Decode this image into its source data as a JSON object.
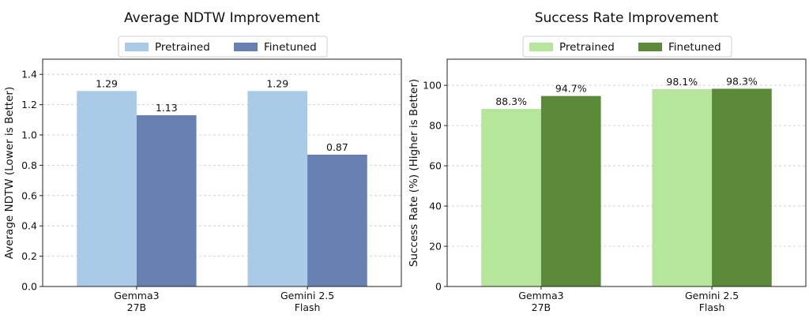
{
  "chart_data": [
    {
      "type": "bar",
      "title": "Average NDTW Improvement",
      "xlabel": "",
      "ylabel": "Average NDTW (Lower is Better)",
      "categories": [
        [
          "Gemma3",
          "27B"
        ],
        [
          "Gemini 2.5",
          "Flash"
        ]
      ],
      "series": [
        {
          "name": "Pretrained",
          "values": [
            1.29,
            1.29
          ],
          "color": "#a9cbe8"
        },
        {
          "name": "Finetuned",
          "values": [
            1.13,
            0.87
          ],
          "color": "#6780b2"
        }
      ],
      "data_labels": [
        [
          "1.29",
          "1.29"
        ],
        [
          "1.13",
          "0.87"
        ]
      ],
      "ylim": [
        0,
        1.5
      ],
      "yticks": [
        0.0,
        0.2,
        0.4,
        0.6,
        0.8,
        1.0,
        1.2,
        1.4
      ],
      "ytick_labels": [
        "0.0",
        "0.2",
        "0.4",
        "0.6",
        "0.8",
        "1.0",
        "1.2",
        "1.4"
      ],
      "grid": true,
      "legend_position": "top-center"
    },
    {
      "type": "bar",
      "title": "Success Rate Improvement",
      "xlabel": "",
      "ylabel": "Success Rate (%) (Higher is Better)",
      "categories": [
        [
          "Gemma3",
          "27B"
        ],
        [
          "Gemini 2.5",
          "Flash"
        ]
      ],
      "series": [
        {
          "name": "Pretrained",
          "values": [
            88.3,
            98.1
          ],
          "color": "#b5e69b"
        },
        {
          "name": "Finetuned",
          "values": [
            94.7,
            98.3
          ],
          "color": "#5a8a37"
        }
      ],
      "data_labels": [
        [
          "88.3%",
          "98.1%"
        ],
        [
          "94.7%",
          "98.3%"
        ]
      ],
      "ylim": [
        0,
        113
      ],
      "yticks": [
        0,
        20,
        40,
        60,
        80,
        100
      ],
      "ytick_labels": [
        "0",
        "20",
        "40",
        "60",
        "80",
        "100"
      ],
      "grid": true,
      "legend_position": "top-center"
    }
  ]
}
